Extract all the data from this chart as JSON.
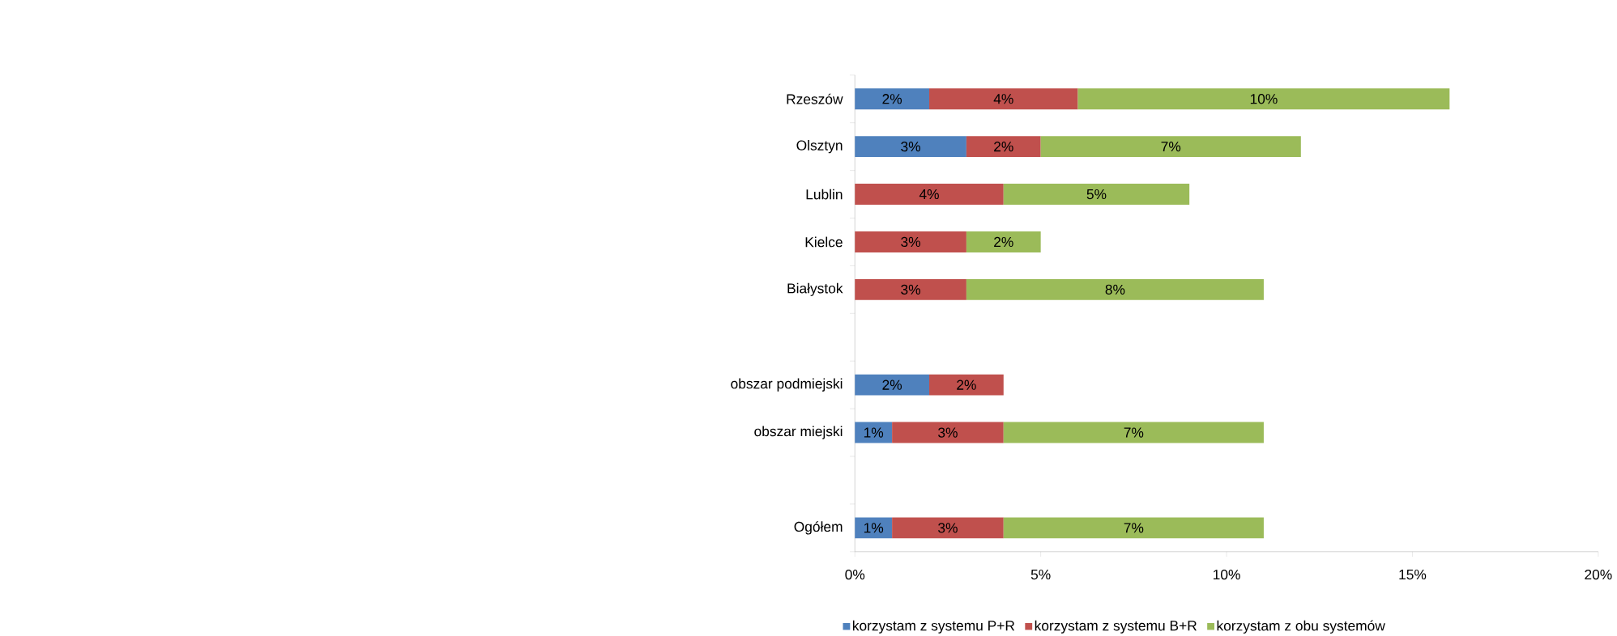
{
  "chart_data": {
    "type": "bar",
    "orientation": "horizontal",
    "stacked": true,
    "categories": [
      "Rzeszów",
      "Olsztyn",
      "Lublin",
      "Kielce",
      "Białystok",
      null,
      "obszar podmiejski",
      "obszar miejski",
      null,
      "Ogółem"
    ],
    "series": [
      {
        "name": "korzystam z systemu P+R",
        "color": "#4f81bd",
        "values": [
          2,
          3,
          null,
          null,
          null,
          null,
          2,
          1,
          null,
          1
        ],
        "value_labels": [
          "2%",
          "3%",
          null,
          null,
          null,
          null,
          "2%",
          "1%",
          null,
          "1%"
        ]
      },
      {
        "name": "korzystam z systemu B+R",
        "color": "#c0504d",
        "values": [
          4,
          2,
          4,
          3,
          3,
          null,
          2,
          3,
          null,
          3
        ],
        "value_labels": [
          "4%",
          "2%",
          "4%",
          "3%",
          "3%",
          null,
          "2%",
          "3%",
          null,
          "3%"
        ]
      },
      {
        "name": "korzystam z obu systemów",
        "color": "#9bbb59",
        "values": [
          10,
          7,
          5,
          2,
          8,
          null,
          null,
          7,
          null,
          7
        ],
        "value_labels": [
          "10%",
          "7%",
          "5%",
          "2%",
          "8%",
          null,
          null,
          "7%",
          null,
          "7%"
        ]
      }
    ],
    "xlim": [
      0,
      20
    ],
    "xticks": [
      {
        "value": 0,
        "label": "0%"
      },
      {
        "value": 5,
        "label": "5%"
      },
      {
        "value": 10,
        "label": "10%"
      },
      {
        "value": 15,
        "label": "15%"
      },
      {
        "value": 20,
        "label": "20%"
      }
    ],
    "grid": false,
    "legend": "bottom"
  }
}
